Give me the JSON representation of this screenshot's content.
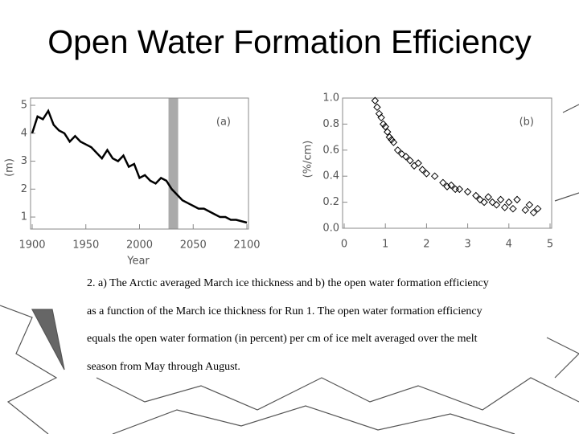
{
  "title": "Open Water Formation Efficiency",
  "caption": [
    "2. a) The Arctic averaged March ice thickness and b) the open water formation efficiency",
    "as a function of the March ice thickness for Run 1. The open water formation efficiency",
    "equals the open water formation (in percent) per cm of ice melt averaged over the melt",
    "season from May through August."
  ],
  "chart_data": [
    {
      "type": "line",
      "annotation": "(a)",
      "x_label": "Year",
      "y_label": "(m)",
      "color": "#000000",
      "x": [
        1900,
        1905,
        1910,
        1915,
        1920,
        1925,
        1930,
        1935,
        1940,
        1945,
        1950,
        1955,
        1960,
        1965,
        1970,
        1975,
        1980,
        1985,
        1990,
        1995,
        2000,
        2005,
        2010,
        2015,
        2020,
        2025,
        2030,
        2035,
        2040,
        2045,
        2050,
        2055,
        2060,
        2065,
        2070,
        2075,
        2080,
        2085,
        2090,
        2095,
        2100
      ],
      "values": [
        4.0,
        4.6,
        4.5,
        4.8,
        4.3,
        4.1,
        4.0,
        3.7,
        3.9,
        3.7,
        3.6,
        3.5,
        3.3,
        3.1,
        3.4,
        3.1,
        3.0,
        3.2,
        2.8,
        2.9,
        2.4,
        2.5,
        2.3,
        2.2,
        2.4,
        2.3,
        2.0,
        1.8,
        1.6,
        1.5,
        1.4,
        1.3,
        1.3,
        1.2,
        1.1,
        1.0,
        1.0,
        0.9,
        0.9,
        0.85,
        0.8
      ],
      "shaded_span": [
        2027,
        2036
      ],
      "shade_color": "#aaaaaa",
      "xlim": [
        1900,
        2100
      ],
      "xticks": [
        1900,
        1950,
        2000,
        2050,
        2100
      ],
      "ylim": [
        0.57,
        5.26
      ],
      "yticks": [
        1,
        2,
        3,
        4,
        5
      ]
    },
    {
      "type": "scatter",
      "annotation": "(b)",
      "y_label": "(%/cm)",
      "color": "#000000",
      "x": [
        0.75,
        0.8,
        0.85,
        0.9,
        0.95,
        1.0,
        1.05,
        1.1,
        1.15,
        1.2,
        1.3,
        1.4,
        1.5,
        1.6,
        1.7,
        1.8,
        1.9,
        2.0,
        2.2,
        2.4,
        2.5,
        2.6,
        2.7,
        2.8,
        3.0,
        3.2,
        3.3,
        3.4,
        3.5,
        3.6,
        3.7,
        3.8,
        3.9,
        4.0,
        4.1,
        4.2,
        4.4,
        4.5,
        4.6,
        4.7
      ],
      "values": [
        0.98,
        0.93,
        0.88,
        0.85,
        0.8,
        0.78,
        0.74,
        0.7,
        0.68,
        0.66,
        0.6,
        0.57,
        0.55,
        0.52,
        0.48,
        0.5,
        0.45,
        0.42,
        0.4,
        0.35,
        0.32,
        0.33,
        0.3,
        0.3,
        0.28,
        0.25,
        0.22,
        0.2,
        0.24,
        0.2,
        0.18,
        0.22,
        0.16,
        0.2,
        0.15,
        0.22,
        0.14,
        0.18,
        0.12,
        0.15
      ],
      "xlim": [
        0,
        5
      ],
      "xticks": [
        0,
        1,
        2,
        3,
        4,
        5
      ],
      "ylim": [
        0,
        1.0
      ],
      "yticks": [
        {
          "value": 0,
          "label": "0.0"
        },
        0.2,
        0.4,
        0.6,
        0.8,
        {
          "value": 1.0,
          "label": "1.0"
        }
      ]
    }
  ]
}
